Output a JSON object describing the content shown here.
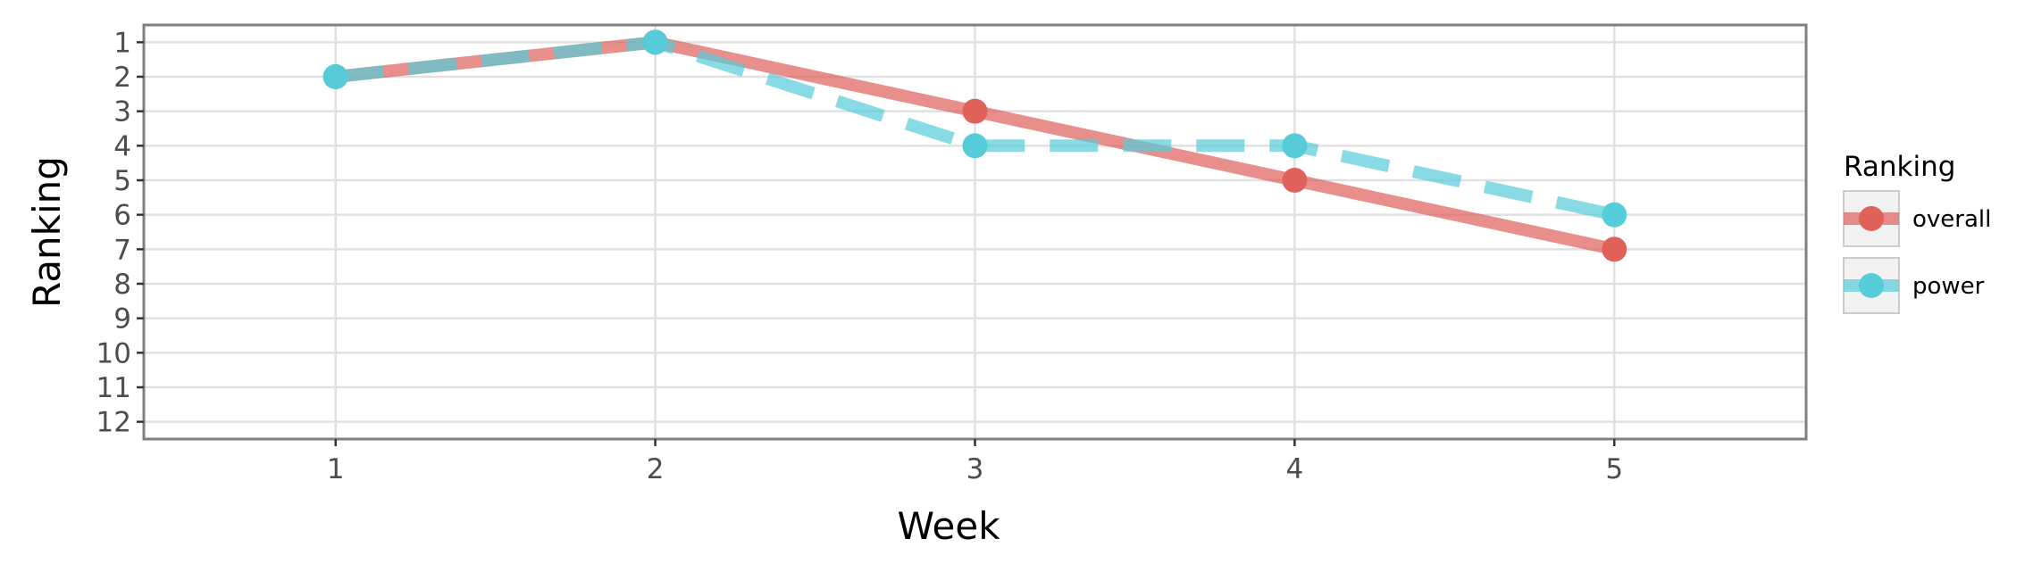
{
  "chart_data": {
    "type": "line",
    "xlabel": "Week",
    "ylabel": "Ranking",
    "x": [
      1,
      2,
      3,
      4,
      5
    ],
    "xlim": [
      0.4,
      5.6
    ],
    "ylim": [
      12.5,
      0.5
    ],
    "y_reversed": true,
    "xticks": [
      "1",
      "2",
      "3",
      "4",
      "5"
    ],
    "yticks": [
      "1",
      "2",
      "3",
      "4",
      "5",
      "6",
      "7",
      "8",
      "9",
      "10",
      "11",
      "12"
    ],
    "grid": true,
    "legend": {
      "title": "Ranking",
      "placement": "right"
    },
    "series": [
      {
        "name": "overall",
        "values": [
          2,
          1,
          3,
          5,
          7
        ],
        "color": "#E0605A",
        "line_style": "solid"
      },
      {
        "name": "power",
        "values": [
          2,
          1,
          4,
          4,
          6
        ],
        "color": "#55CCD8",
        "line_style": "dashed"
      }
    ]
  }
}
